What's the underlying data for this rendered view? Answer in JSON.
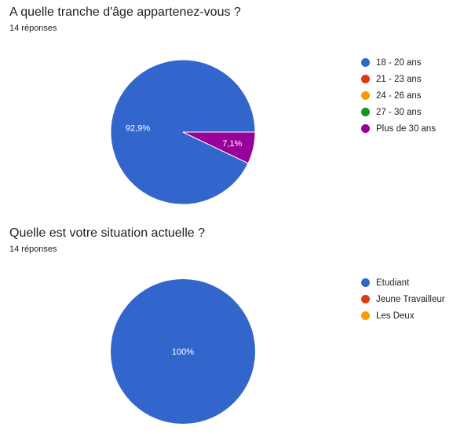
{
  "chart_data": [
    {
      "type": "pie",
      "title": "A quelle tranche d'âge appartenez-vous ?",
      "subtitle": "14 réponses",
      "categories": [
        "18 - 20 ans",
        "21 - 23 ans",
        "24 - 26 ans",
        "27 - 30 ans",
        "Plus de 30 ans"
      ],
      "values": [
        92.9,
        0,
        0,
        0,
        7.1
      ],
      "labels": [
        "92,9%",
        "",
        "",
        "",
        "7,1%"
      ],
      "colors": [
        "#3366cc",
        "#dc3912",
        "#ff9900",
        "#109618",
        "#990099"
      ],
      "legend_position": "right"
    },
    {
      "type": "pie",
      "title": "Quelle est votre situation actuelle ?",
      "subtitle": "14 réponses",
      "categories": [
        "Etudiant",
        "Jeune Travailleur",
        "Les Deux"
      ],
      "values": [
        100,
        0,
        0
      ],
      "labels": [
        "100%",
        "",
        ""
      ],
      "colors": [
        "#3366cc",
        "#dc3912",
        "#ff9900"
      ],
      "legend_position": "right"
    }
  ]
}
